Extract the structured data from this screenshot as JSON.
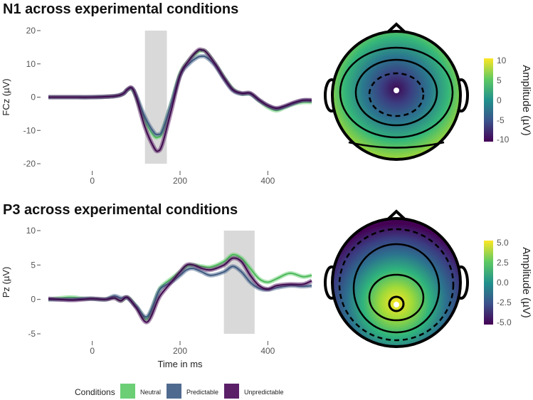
{
  "chart_data": [
    {
      "type": "line",
      "title": "N1 across experimental conditions",
      "ylabel": "FCz (µV)",
      "xlabel": "",
      "xlim": [
        -100,
        500
      ],
      "ylim": [
        -20,
        20
      ],
      "xticks": [
        0,
        200,
        400
      ],
      "xtick_labels": [
        "0",
        "200",
        "400"
      ],
      "yticks": [
        20,
        10,
        0,
        -10,
        -20
      ],
      "ytick_labels": [
        "20",
        "10",
        "0",
        "-10",
        "-20"
      ],
      "highlight_window": [
        120,
        170
      ],
      "x": [
        -100,
        -50,
        0,
        50,
        70,
        80,
        90,
        100,
        120,
        140,
        150,
        160,
        180,
        200,
        220,
        240,
        250,
        260,
        280,
        300,
        320,
        340,
        360,
        380,
        400,
        420,
        440,
        460,
        480,
        500
      ],
      "series": [
        {
          "name": "Neutral",
          "values": [
            0,
            0,
            0,
            0.3,
            1,
            2.2,
            2.5,
            0,
            -7,
            -11.5,
            -12,
            -10.5,
            -2,
            7,
            11,
            13.5,
            14,
            13.5,
            10,
            6,
            2.5,
            1,
            1,
            -1,
            -3,
            -4,
            -3,
            -2,
            -1.5,
            -1.5
          ]
        },
        {
          "name": "Predictable",
          "values": [
            0,
            0,
            0,
            0.3,
            1,
            2.2,
            2.7,
            0.5,
            -6,
            -10.5,
            -11.2,
            -10,
            -2,
            6.5,
            10,
            12,
            12.3,
            12,
            9.5,
            5.5,
            2,
            1,
            1,
            -1,
            -2.5,
            -3.5,
            -2.8,
            -1.8,
            -1,
            -1
          ]
        },
        {
          "name": "Unpredictable",
          "values": [
            0,
            0,
            0,
            0.3,
            1,
            2.3,
            2.8,
            0,
            -9,
            -15,
            -16.2,
            -14,
            -4,
            6.5,
            11,
            14,
            14.2,
            13.5,
            10,
            5.8,
            2.3,
            1.2,
            1.2,
            -0.8,
            -2.5,
            -3.3,
            -2.6,
            -1.6,
            -0.9,
            -0.9
          ]
        }
      ]
    },
    {
      "type": "line",
      "title": "P3 across experimental conditions",
      "ylabel": "Pz (µV)",
      "xlabel": "Time in ms",
      "xlim": [
        -100,
        500
      ],
      "ylim": [
        -5,
        10
      ],
      "xticks": [
        0,
        200,
        400
      ],
      "xtick_labels": [
        "0",
        "200",
        "400"
      ],
      "yticks": [
        10,
        5,
        0,
        -5
      ],
      "ytick_labels": [
        "10",
        "5",
        "0",
        "-5"
      ],
      "highlight_window": [
        300,
        370
      ],
      "x": [
        -100,
        -50,
        -20,
        0,
        30,
        50,
        65,
        80,
        100,
        125,
        150,
        160,
        180,
        200,
        215,
        230,
        250,
        270,
        300,
        320,
        340,
        360,
        380,
        400,
        420,
        450,
        480,
        500
      ],
      "series": [
        {
          "name": "Neutral",
          "values": [
            0,
            0.3,
            0.1,
            0.1,
            0,
            0.3,
            -0.2,
            0.3,
            -1,
            -2.8,
            1,
            2,
            3,
            4,
            4.8,
            5,
            4.8,
            4.7,
            5.5,
            6.5,
            6,
            4.5,
            3,
            2.5,
            3,
            3.8,
            3.3,
            3.5
          ]
        },
        {
          "name": "Predictable",
          "values": [
            0,
            0,
            0.1,
            0.1,
            0,
            0.5,
            0.2,
            0.2,
            -1,
            -2.5,
            1,
            1.8,
            2.5,
            3.5,
            4.3,
            4.5,
            4,
            3.5,
            4,
            4.8,
            4,
            2.5,
            1.6,
            1.4,
            1.7,
            2,
            1.9,
            2
          ]
        },
        {
          "name": "Unpredictable",
          "values": [
            0.1,
            -0.1,
            0,
            0.1,
            0,
            0.2,
            -0.2,
            0.3,
            -1.2,
            -3.3,
            0,
            1,
            2.5,
            4,
            5,
            5,
            4.5,
            4.3,
            5,
            6,
            5.5,
            3.5,
            2,
            1.5,
            2,
            2.2,
            2.2,
            2.7
          ]
        }
      ]
    },
    {
      "type": "heatmap",
      "subtype": "topoplot",
      "colorbar_label": "Amplitude (µV)",
      "range": [
        -10,
        10
      ],
      "colorbar_ticks": [
        "10",
        "5",
        "0",
        "-5",
        "-10"
      ]
    },
    {
      "type": "heatmap",
      "subtype": "topoplot",
      "colorbar_label": "Amplitude (µV)",
      "range": [
        -5,
        5
      ],
      "colorbar_ticks": [
        "5.0",
        "2.5",
        "0.0",
        "-2.5",
        "-5.0"
      ]
    }
  ],
  "legend": {
    "title": "Conditions",
    "placement": "bottom",
    "items": [
      {
        "label": "Neutral",
        "fill": "#6ccf76",
        "line": "#4cb85a"
      },
      {
        "label": "Predictable",
        "fill": "#4f6a8f",
        "line": "#3d5a80"
      },
      {
        "label": "Unpredictable",
        "fill": "#5b1f68",
        "line": "#3f0b4e"
      }
    ]
  }
}
